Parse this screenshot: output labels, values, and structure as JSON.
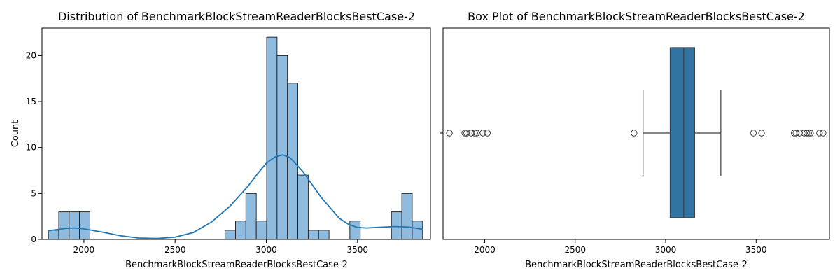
{
  "chart_data": [
    {
      "type": "histogram",
      "title": "Distribution of BenchmarkBlockStreamReaderBlocksBestCase-2",
      "xlabel": "BenchmarkBlockStreamReaderBlocksBestCase-2",
      "ylabel": "Count",
      "xlim": [
        1770,
        3900
      ],
      "ylim": [
        0,
        23
      ],
      "xticks": [
        2000,
        2500,
        3000,
        3500
      ],
      "yticks": [
        0,
        5,
        10,
        15,
        20
      ],
      "bin_width": 57,
      "bins": [
        {
          "x0": 1805,
          "count": 1
        },
        {
          "x0": 1862,
          "count": 3
        },
        {
          "x0": 1919,
          "count": 3
        },
        {
          "x0": 1976,
          "count": 3
        },
        {
          "x0": 2033,
          "count": 0
        },
        {
          "x0": 2090,
          "count": 0
        },
        {
          "x0": 2147,
          "count": 0
        },
        {
          "x0": 2204,
          "count": 0
        },
        {
          "x0": 2261,
          "count": 0
        },
        {
          "x0": 2318,
          "count": 0
        },
        {
          "x0": 2375,
          "count": 0
        },
        {
          "x0": 2432,
          "count": 0
        },
        {
          "x0": 2489,
          "count": 0
        },
        {
          "x0": 2546,
          "count": 0
        },
        {
          "x0": 2603,
          "count": 0
        },
        {
          "x0": 2660,
          "count": 0
        },
        {
          "x0": 2717,
          "count": 0
        },
        {
          "x0": 2774,
          "count": 1
        },
        {
          "x0": 2831,
          "count": 2
        },
        {
          "x0": 2888,
          "count": 5
        },
        {
          "x0": 2945,
          "count": 2
        },
        {
          "x0": 3002,
          "count": 22
        },
        {
          "x0": 3059,
          "count": 20
        },
        {
          "x0": 3116,
          "count": 17
        },
        {
          "x0": 3173,
          "count": 7
        },
        {
          "x0": 3230,
          "count": 1
        },
        {
          "x0": 3287,
          "count": 1
        },
        {
          "x0": 3344,
          "count": 0
        },
        {
          "x0": 3401,
          "count": 0
        },
        {
          "x0": 3458,
          "count": 2
        },
        {
          "x0": 3515,
          "count": 0
        },
        {
          "x0": 3572,
          "count": 0
        },
        {
          "x0": 3629,
          "count": 0
        },
        {
          "x0": 3686,
          "count": 3
        },
        {
          "x0": 3743,
          "count": 5
        },
        {
          "x0": 3800,
          "count": 2
        }
      ],
      "kde": {
        "x": [
          1805,
          1900,
          1950,
          2000,
          2100,
          2200,
          2300,
          2400,
          2500,
          2600,
          2700,
          2800,
          2900,
          2950,
          3000,
          3050,
          3090,
          3130,
          3200,
          3300,
          3400,
          3450,
          3500,
          3550,
          3600,
          3700,
          3780,
          3860
        ],
        "y": [
          0.95,
          1.2,
          1.25,
          1.15,
          0.8,
          0.4,
          0.15,
          0.1,
          0.25,
          0.75,
          1.9,
          3.6,
          5.8,
          7.1,
          8.3,
          9.0,
          9.2,
          8.9,
          7.4,
          4.6,
          2.3,
          1.65,
          1.3,
          1.25,
          1.3,
          1.4,
          1.35,
          1.1
        ]
      },
      "bar_color": "#8fbcde",
      "line_color": "#1f77b4"
    },
    {
      "type": "box",
      "title": "Box Plot of BenchmarkBlockStreamReaderBlocksBestCase-2",
      "xlabel": "BenchmarkBlockStreamReaderBlocksBestCase-2",
      "xlim": [
        1770,
        3905
      ],
      "xticks": [
        2000,
        2500,
        3000,
        3500
      ],
      "q1": 3025,
      "median": 3100,
      "q3": 3160,
      "whisker_low": 2875,
      "whisker_high": 3305,
      "outliers": [
        1805,
        1890,
        1900,
        1925,
        1945,
        1955,
        1990,
        2015,
        2825,
        3485,
        3530,
        3710,
        3720,
        3740,
        3765,
        3780,
        3790,
        3800,
        3850,
        3870
      ],
      "box_color": "#3274a1"
    }
  ]
}
